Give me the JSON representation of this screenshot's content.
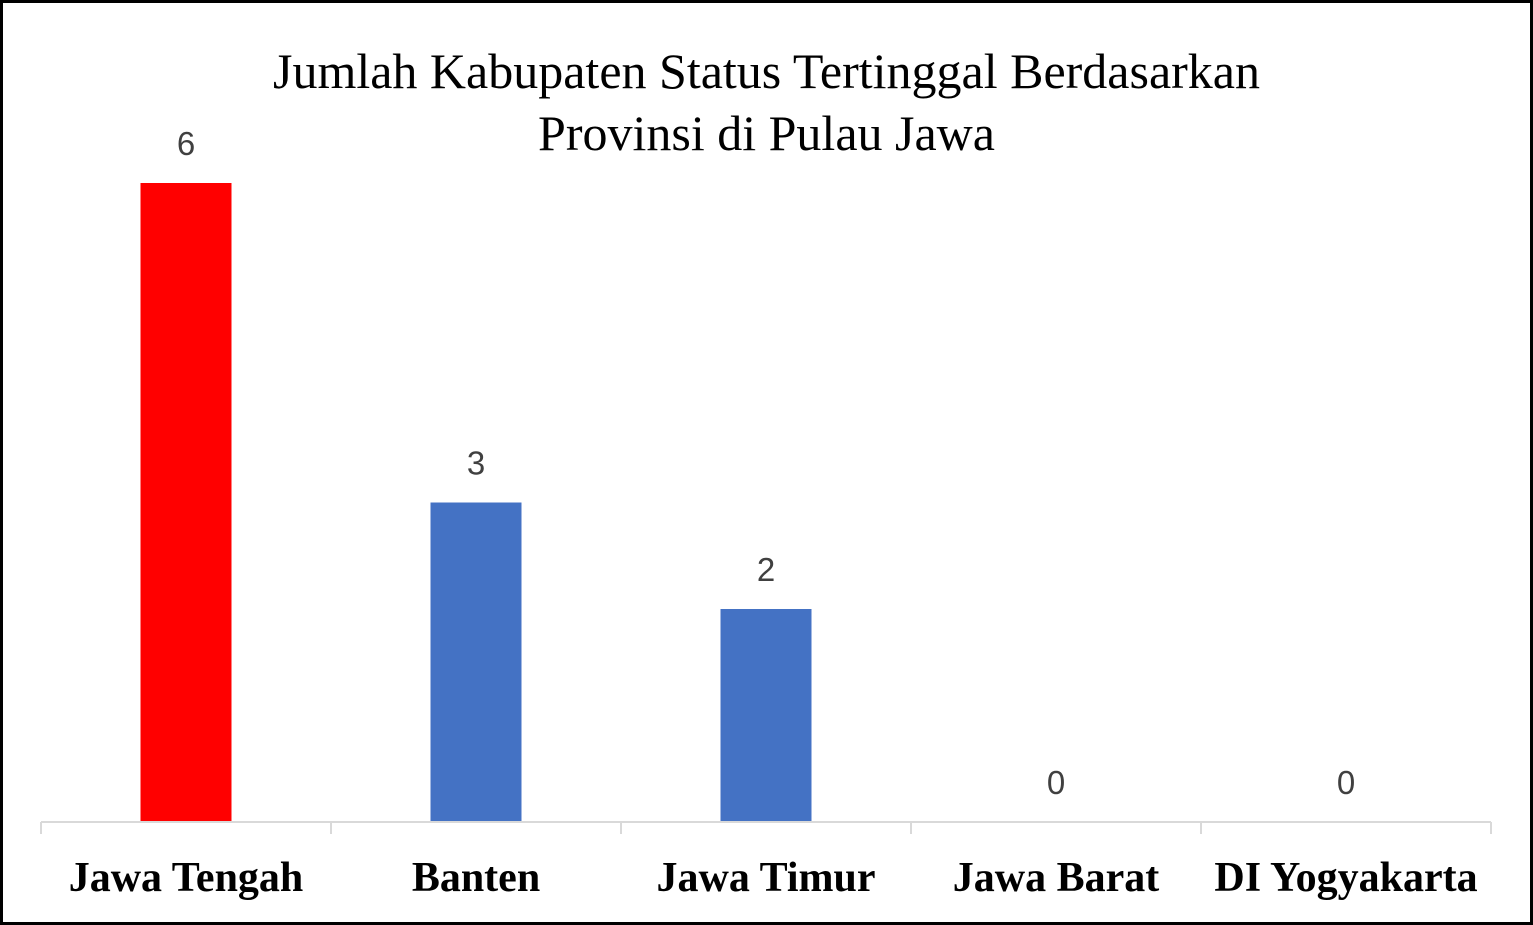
{
  "chart_data": {
    "type": "bar",
    "title": "Jumlah Kabupaten Status Tertinggal Berdasarkan Provinsi di Pulau Jawa",
    "title_lines": [
      "Jumlah Kabupaten Status Tertinggal Berdasarkan",
      "Provinsi di Pulau Jawa"
    ],
    "categories": [
      "Jawa Tengah",
      "Banten",
      "Jawa Timur",
      "Jawa Barat",
      "DI Yogyakarta"
    ],
    "values": [
      6,
      3,
      2,
      0,
      0
    ],
    "bar_colors": [
      "#ff0000",
      "#4472c4",
      "#4472c4",
      "#4472c4",
      "#4472c4"
    ],
    "xlabel": "",
    "ylabel": "",
    "ylim": [
      0,
      6
    ],
    "grid": false,
    "data_labels": true
  }
}
